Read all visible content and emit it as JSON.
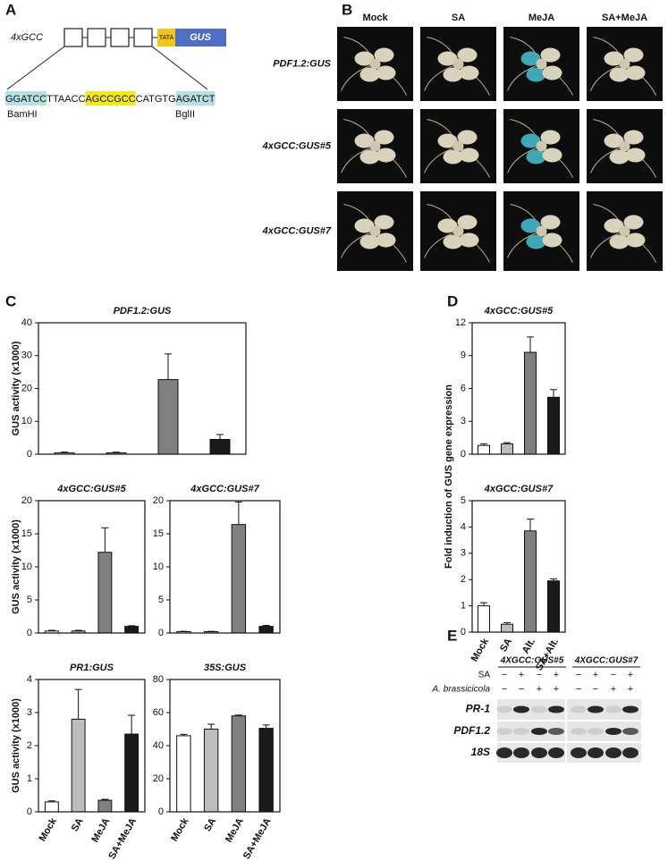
{
  "panel_labels": [
    "A",
    "B",
    "C",
    "D",
    "E"
  ],
  "panel_a": {
    "construct": "4xGCC",
    "tata": "TATA",
    "reporter": "GUS",
    "sequence": [
      "GGATCC",
      "TTAACC",
      "AGCCGCC",
      "CATGTG",
      "AGATCT"
    ],
    "site_left": "BamHI",
    "site_right": "BglII"
  },
  "panel_b": {
    "columns": [
      "Mock",
      "SA",
      "MeJA",
      "SA+MeJA"
    ],
    "rows": [
      "PDF1.2:GUS",
      "4xGCC:GUS#5",
      "4xGCC:GUS#7"
    ]
  },
  "chart_data": [
    {
      "type": "bar",
      "title": "PDF1.2:GUS",
      "y_label": "GUS activity (x1000)",
      "categories": [
        null,
        null,
        null,
        null
      ],
      "values": [
        0.4,
        0.4,
        22.7,
        4.5
      ],
      "errors": [
        0.2,
        0.2,
        7.8,
        1.5
      ],
      "colors": [
        "#ffffff",
        "#bdbdbd",
        "#808080",
        "#1a1a1a"
      ],
      "ylim": [
        0,
        40
      ],
      "yticks": [
        0,
        10,
        20,
        30,
        40
      ]
    },
    {
      "type": "bar",
      "title": "4xGCC:GUS#5",
      "y_label": "GUS activity (x1000)",
      "categories": [
        null,
        null,
        null,
        null
      ],
      "values": [
        0.3,
        0.3,
        12.2,
        1.0
      ],
      "errors": [
        0.1,
        0.1,
        3.7,
        0.1
      ],
      "colors": [
        "#ffffff",
        "#bdbdbd",
        "#808080",
        "#1a1a1a"
      ],
      "ylim": [
        0,
        20
      ],
      "yticks": [
        0,
        5,
        10,
        15,
        20
      ]
    },
    {
      "type": "bar",
      "title": "4xGCC:GUS#7",
      "categories": [
        null,
        null,
        null,
        null
      ],
      "values": [
        0.2,
        0.2,
        16.4,
        1.0
      ],
      "errors": [
        0.05,
        0.05,
        3.4,
        0.15
      ],
      "colors": [
        "#ffffff",
        "#bdbdbd",
        "#808080",
        "#1a1a1a"
      ],
      "ylim": [
        0,
        20
      ],
      "yticks": [
        0,
        5,
        10,
        15,
        20
      ]
    },
    {
      "type": "bar",
      "title": "PR1:GUS",
      "y_label": "GUS activity (x1000)",
      "categories": [
        "Mock",
        "SA",
        "MeJA",
        "SA+MeJA"
      ],
      "values": [
        0.3,
        2.8,
        0.35,
        2.35
      ],
      "errors": [
        0.03,
        0.9,
        0.03,
        0.57
      ],
      "colors": [
        "#ffffff",
        "#bdbdbd",
        "#808080",
        "#1a1a1a"
      ],
      "ylim": [
        0,
        4
      ],
      "yticks": [
        0,
        1,
        2,
        3,
        4
      ]
    },
    {
      "type": "bar",
      "title": "35S:GUS",
      "categories": [
        "Mock",
        "SA",
        "MeJA",
        "SA+MeJA"
      ],
      "values": [
        46,
        50,
        58,
        50.5
      ],
      "errors": [
        0.8,
        3,
        0.5,
        2
      ],
      "colors": [
        "#ffffff",
        "#bdbdbd",
        "#808080",
        "#1a1a1a"
      ],
      "ylim": [
        0,
        80
      ],
      "yticks": [
        0,
        20,
        40,
        60,
        80
      ]
    },
    {
      "type": "bar",
      "title": "4xGCC:GUS#5",
      "y_label": "Fold induction of GUS gene expression",
      "categories": [
        null,
        null,
        null,
        null
      ],
      "values": [
        0.8,
        0.95,
        9.3,
        5.2
      ],
      "errors": [
        0.15,
        0.1,
        1.4,
        0.7
      ],
      "colors": [
        "#ffffff",
        "#bdbdbd",
        "#808080",
        "#1a1a1a"
      ],
      "ylim": [
        0,
        12
      ],
      "yticks": [
        0,
        3,
        6,
        9,
        12
      ]
    },
    {
      "type": "bar",
      "title": "4xGCC:GUS#7",
      "categories": [
        "Mock",
        "SA",
        "Alt.",
        "SA+Alt."
      ],
      "values": [
        1.0,
        0.3,
        3.85,
        1.95
      ],
      "errors": [
        0.12,
        0.06,
        0.45,
        0.08
      ],
      "colors": [
        "#ffffff",
        "#bdbdbd",
        "#808080",
        "#1a1a1a"
      ],
      "ylim": [
        0,
        5
      ],
      "yticks": [
        0,
        1,
        2,
        3,
        4,
        5
      ]
    }
  ],
  "panel_e": {
    "lines": [
      "4XGCC:GUS#5",
      "4XGCC:GUS#7"
    ],
    "treatments": [
      "SA",
      "A. brassicicola"
    ],
    "sa_signs": [
      "−",
      "+",
      "−",
      "+",
      "−",
      "+",
      "−",
      "+"
    ],
    "ab_signs": [
      "−",
      "−",
      "+",
      "+",
      "−",
      "−",
      "+",
      "+"
    ],
    "bands": [
      "PR-1",
      "PDF1.2",
      "18S"
    ]
  }
}
